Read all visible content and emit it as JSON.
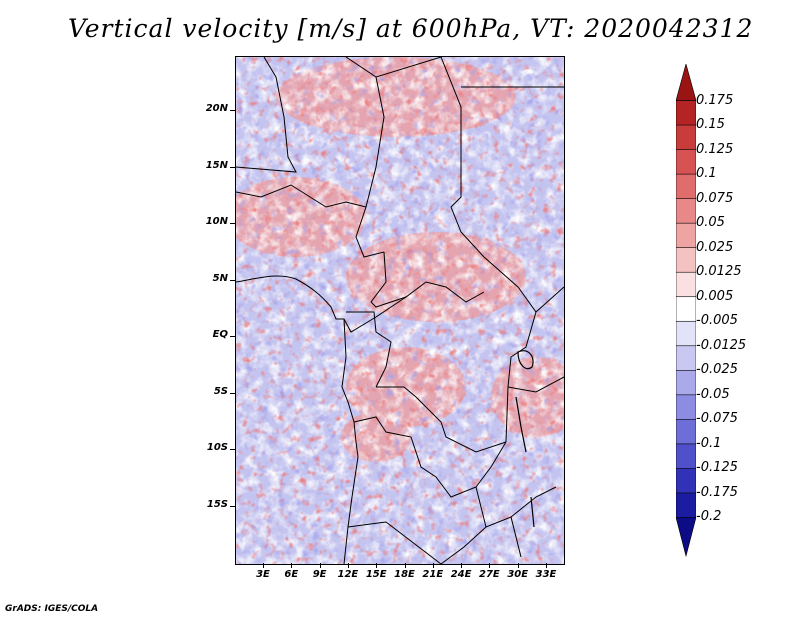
{
  "title": "Vertical velocity [m/s] at 600hPa, VT: 2020042312",
  "credit": "GrADS: IGES/COLA",
  "map": {
    "y_ticks": [
      "20N",
      "15N",
      "10N",
      "5N",
      "EQ",
      "5S",
      "10S",
      "15S"
    ],
    "x_ticks": [
      "3E",
      "6E",
      "9E",
      "12E",
      "15E",
      "18E",
      "21E",
      "24E",
      "27E",
      "30E",
      "33E"
    ]
  },
  "colorbar": {
    "labels": [
      "0.175",
      "0.15",
      "0.125",
      "0.1",
      "0.075",
      "0.05",
      "0.025",
      "0.0125",
      "0.005",
      "-0.005",
      "-0.0125",
      "-0.025",
      "-0.05",
      "-0.075",
      "-0.1",
      "-0.125",
      "-0.175",
      "-0.2"
    ],
    "colors": [
      "#9a1414",
      "#b52424",
      "#c83c3c",
      "#d75252",
      "#e06c6c",
      "#e88888",
      "#efa4a4",
      "#f5c2c2",
      "#fae0e0",
      "#ffffff",
      "#e2e2f8",
      "#c8c8f2",
      "#aaaaeb",
      "#8c8ce2",
      "#6e6ed8",
      "#5050ca",
      "#3232b8",
      "#1c1ca2",
      "#0c0c86"
    ]
  }
}
